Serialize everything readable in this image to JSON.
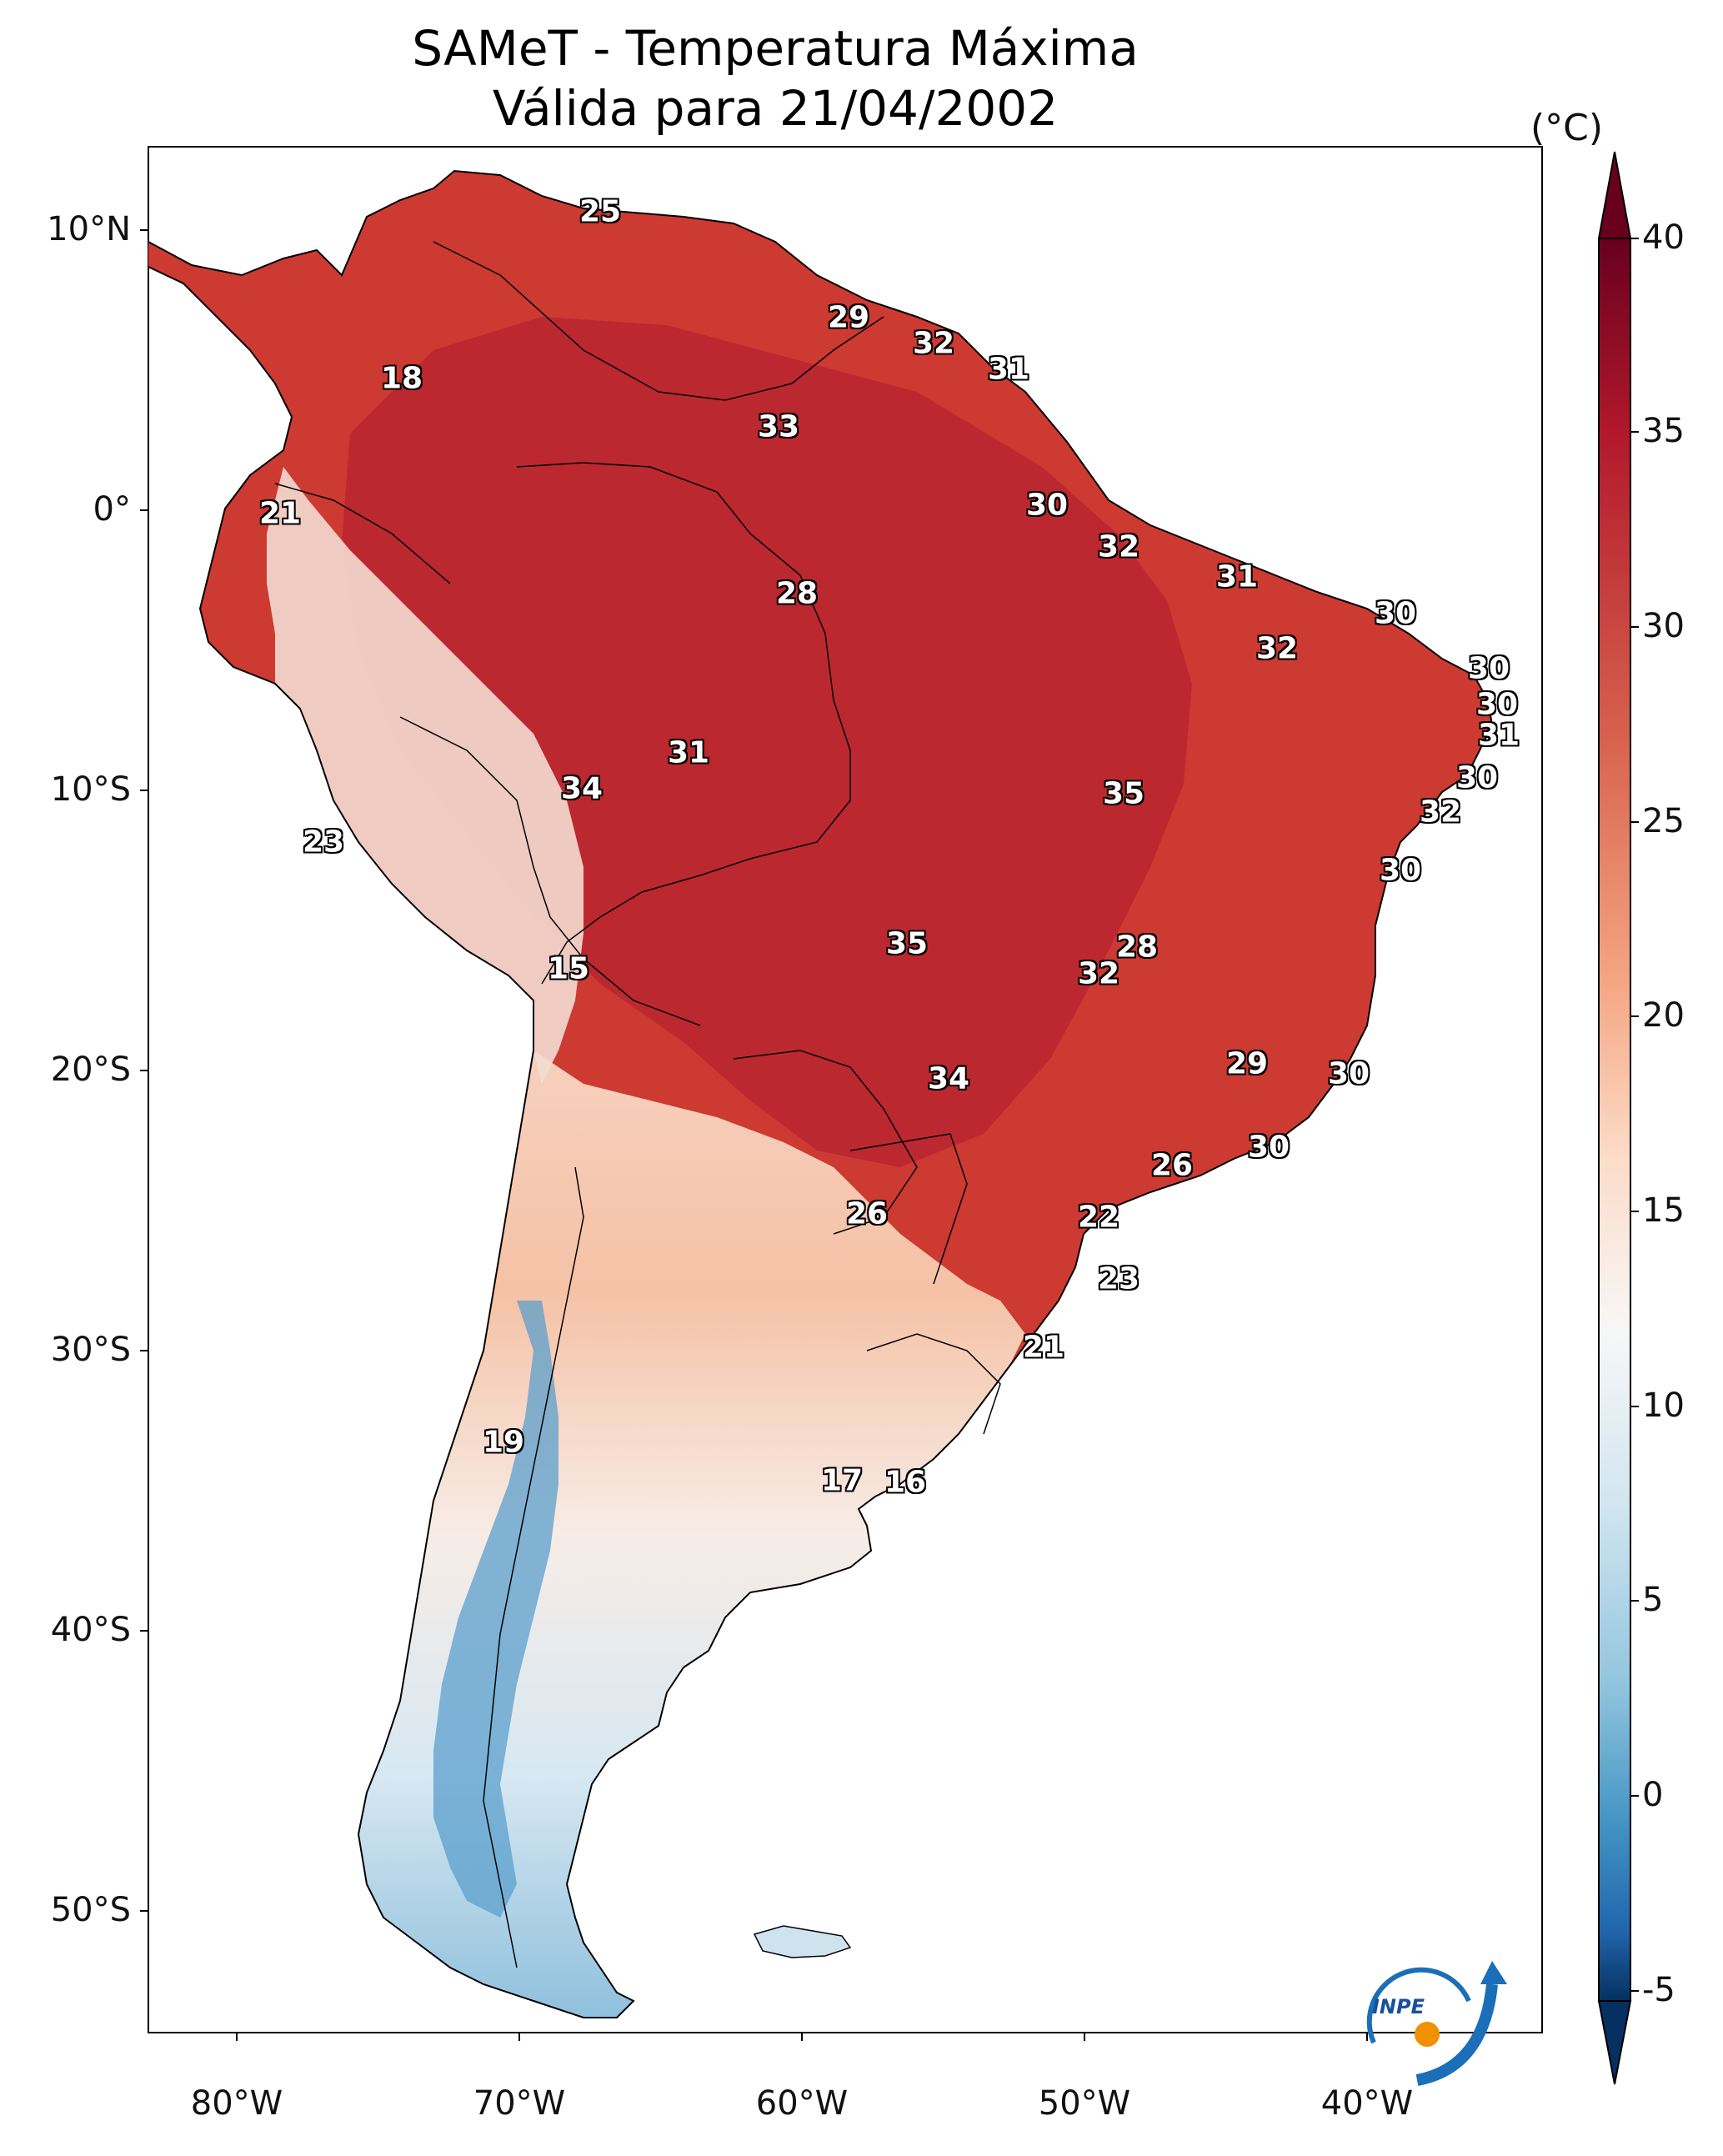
{
  "title": {
    "line1": "SAMeT - Temperatura Máxima",
    "line2": "Válida para 21/04/2002"
  },
  "axes": {
    "lat_labels": [
      "10°N",
      "0°",
      "10°S",
      "20°S",
      "30°S",
      "40°S",
      "50°S"
    ],
    "lon_labels": [
      "80°W",
      "70°W",
      "60°W",
      "50°W",
      "40°W"
    ]
  },
  "colorbar": {
    "unit": "(°C)",
    "ticks": [
      "40",
      "35",
      "30",
      "25",
      "20",
      "15",
      "10",
      "5",
      "0",
      "-5"
    ],
    "range": [
      -5,
      40
    ],
    "colors": {
      "high": "#67001f",
      "warm": "#d6604d",
      "mild": "#fddbc7",
      "neutral": "#f7f7f7",
      "cool": "#92c5de",
      "cold": "#2166ac",
      "low": "#053061"
    }
  },
  "temperature_labels": [
    "25",
    "29",
    "32",
    "31",
    "18",
    "33",
    "21",
    "30",
    "32",
    "28",
    "31",
    "30",
    "32",
    "30",
    "30",
    "31",
    "31",
    "34",
    "35",
    "30",
    "32",
    "23",
    "30",
    "15",
    "35",
    "28",
    "32",
    "34",
    "29",
    "30",
    "30",
    "26",
    "26",
    "22",
    "23",
    "21",
    "19",
    "17",
    "16"
  ],
  "logo": {
    "text": "INPE",
    "icon": "inpe-logo-icon"
  }
}
